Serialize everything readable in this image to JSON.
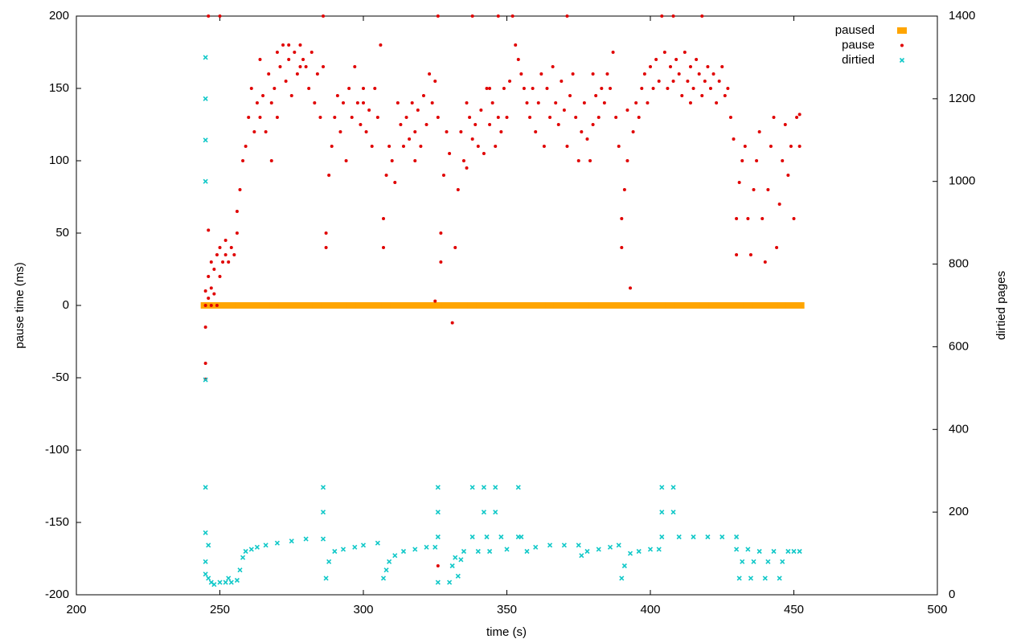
{
  "chart_data": {
    "type": "scatter",
    "xlabel": "time (s)",
    "ylabel": "pause time (ms)",
    "y2label": "dirtied pages",
    "xlim": [
      200,
      500
    ],
    "xticks": [
      200,
      250,
      300,
      350,
      400,
      450,
      500
    ],
    "ylim": [
      -200,
      200
    ],
    "yticks": [
      -200,
      -150,
      -100,
      -50,
      0,
      50,
      100,
      150,
      200
    ],
    "y2lim": [
      0,
      1400
    ],
    "y2ticks": [
      0,
      200,
      400,
      600,
      800,
      1000,
      1200,
      1400
    ],
    "grid": false,
    "legend": "top-right",
    "series": [
      {
        "name": "paused",
        "color": "#ffa500",
        "marker": "square",
        "x": [
          245,
          248,
          251,
          254,
          257,
          260,
          263,
          266,
          269,
          272,
          275,
          278,
          281,
          284,
          287,
          290,
          293,
          296,
          299,
          302,
          305,
          308,
          311,
          314,
          317,
          320,
          323,
          326,
          329,
          332,
          335,
          338,
          341,
          344,
          347,
          350,
          353,
          356,
          359,
          362,
          365,
          368,
          371,
          374,
          377,
          380,
          383,
          386,
          389,
          392,
          395,
          398,
          401,
          404,
          407,
          410,
          413,
          416,
          419,
          422,
          425,
          428,
          431,
          434,
          437,
          440,
          443,
          446,
          449,
          452
        ],
        "values": [
          0,
          0,
          0,
          0,
          0,
          0,
          0,
          0,
          0,
          0,
          0,
          0,
          0,
          0,
          0,
          0,
          0,
          0,
          0,
          0,
          0,
          0,
          0,
          0,
          0,
          0,
          0,
          0,
          0,
          0,
          0,
          0,
          0,
          0,
          0,
          0,
          0,
          0,
          0,
          0,
          0,
          0,
          0,
          0,
          0,
          0,
          0,
          0,
          0,
          0,
          0,
          0,
          0,
          0,
          0,
          0,
          0,
          0,
          0,
          0,
          0,
          0,
          0,
          0,
          0,
          0,
          0,
          0,
          0,
          0
        ]
      },
      {
        "name": "pause",
        "color": "#e00000",
        "marker": "dot",
        "x": [
          245,
          245,
          245,
          245,
          245,
          246,
          246,
          246,
          247,
          247,
          247,
          248,
          248,
          249,
          249,
          250,
          250,
          251,
          252,
          252,
          253,
          254,
          255,
          256,
          256,
          257,
          258,
          259,
          260,
          261,
          262,
          263,
          264,
          265,
          266,
          267,
          268,
          269,
          270,
          271,
          272,
          273,
          274,
          275,
          276,
          277,
          278,
          279,
          280,
          281,
          282,
          283,
          284,
          285,
          286,
          287,
          287,
          288,
          289,
          290,
          291,
          292,
          293,
          294,
          295,
          296,
          297,
          298,
          299,
          300,
          301,
          302,
          303,
          304,
          305,
          306,
          307,
          307,
          308,
          309,
          310,
          311,
          312,
          313,
          314,
          315,
          316,
          317,
          318,
          319,
          320,
          321,
          322,
          323,
          324,
          325,
          326,
          327,
          327,
          328,
          329,
          330,
          331,
          332,
          333,
          334,
          335,
          336,
          337,
          338,
          339,
          340,
          341,
          342,
          343,
          344,
          345,
          346,
          347,
          348,
          349,
          350,
          351,
          352,
          353,
          354,
          355,
          356,
          357,
          358,
          359,
          360,
          361,
          362,
          363,
          364,
          365,
          366,
          367,
          368,
          369,
          370,
          371,
          372,
          373,
          374,
          375,
          376,
          377,
          378,
          379,
          380,
          381,
          382,
          383,
          384,
          385,
          386,
          387,
          388,
          389,
          390,
          390,
          391,
          392,
          393,
          394,
          395,
          396,
          397,
          398,
          399,
          400,
          401,
          402,
          403,
          404,
          405,
          406,
          407,
          408,
          409,
          410,
          411,
          412,
          413,
          414,
          415,
          416,
          417,
          418,
          419,
          420,
          421,
          422,
          423,
          424,
          425,
          426,
          427,
          428,
          429,
          430,
          430,
          431,
          432,
          433,
          434,
          435,
          436,
          437,
          438,
          439,
          440,
          441,
          442,
          443,
          444,
          445,
          446,
          447,
          448,
          449,
          450,
          451,
          452,
          452,
          246,
          250,
          286,
          326,
          338,
          347,
          371,
          408,
          418,
          325,
          326,
          264,
          268,
          270,
          274,
          278,
          300,
          318,
          336,
          344,
          380,
          392,
          414
        ],
        "values": [
          -51,
          -40,
          -15,
          0,
          10,
          5,
          20,
          52,
          0,
          12,
          30,
          25,
          8,
          35,
          0,
          20,
          40,
          30,
          35,
          45,
          30,
          40,
          35,
          50,
          65,
          80,
          100,
          110,
          130,
          150,
          120,
          140,
          130,
          145,
          120,
          160,
          140,
          150,
          130,
          165,
          180,
          155,
          170,
          145,
          175,
          160,
          180,
          170,
          165,
          150,
          175,
          140,
          160,
          130,
          165,
          40,
          50,
          90,
          110,
          130,
          145,
          120,
          140,
          100,
          150,
          130,
          165,
          140,
          125,
          150,
          120,
          135,
          110,
          150,
          130,
          180,
          40,
          60,
          90,
          110,
          100,
          85,
          140,
          125,
          110,
          130,
          115,
          140,
          120,
          135,
          110,
          145,
          125,
          160,
          140,
          155,
          130,
          30,
          50,
          90,
          120,
          105,
          -12,
          40,
          80,
          120,
          100,
          140,
          130,
          115,
          125,
          110,
          135,
          105,
          150,
          125,
          140,
          110,
          130,
          120,
          150,
          130,
          155,
          200,
          180,
          170,
          160,
          150,
          140,
          130,
          150,
          120,
          140,
          160,
          110,
          150,
          130,
          165,
          140,
          125,
          155,
          135,
          110,
          145,
          160,
          130,
          100,
          120,
          140,
          115,
          100,
          125,
          145,
          130,
          150,
          140,
          160,
          150,
          175,
          130,
          110,
          40,
          60,
          80,
          100,
          12,
          120,
          140,
          130,
          150,
          160,
          140,
          165,
          150,
          170,
          155,
          200,
          175,
          150,
          165,
          155,
          170,
          160,
          145,
          175,
          155,
          165,
          150,
          170,
          160,
          145,
          155,
          165,
          150,
          160,
          140,
          155,
          165,
          145,
          150,
          130,
          115,
          35,
          60,
          85,
          100,
          110,
          60,
          35,
          80,
          100,
          120,
          60,
          30,
          80,
          110,
          130,
          40,
          70,
          100,
          125,
          90,
          110,
          60,
          130,
          110,
          132,
          200,
          200,
          200,
          200,
          200,
          200,
          200,
          200,
          200,
          3,
          -180,
          170,
          100,
          175,
          180,
          165,
          140,
          100,
          95,
          150,
          160,
          135,
          140
        ]
      },
      {
        "name": "dirtied",
        "color": "#10c8c8",
        "marker": "cross",
        "axis": "y2",
        "x": [
          245,
          245,
          245,
          245,
          245,
          245,
          245,
          245,
          245,
          246,
          246,
          247,
          248,
          250,
          252,
          254,
          256,
          257,
          258,
          259,
          261,
          263,
          266,
          270,
          275,
          280,
          286,
          286,
          286,
          287,
          288,
          290,
          293,
          297,
          300,
          305,
          307,
          308,
          309,
          311,
          314,
          318,
          322,
          325,
          326,
          326,
          326,
          326,
          330,
          331,
          332,
          333,
          334,
          335,
          338,
          338,
          340,
          342,
          342,
          343,
          344,
          346,
          346,
          348,
          350,
          354,
          354,
          355,
          357,
          360,
          365,
          370,
          375,
          376,
          378,
          382,
          386,
          389,
          390,
          391,
          393,
          396,
          400,
          403,
          404,
          404,
          404,
          408,
          408,
          410,
          415,
          420,
          425,
          430,
          430,
          431,
          432,
          434,
          435,
          436,
          438,
          440,
          441,
          443,
          445,
          446,
          448,
          450,
          452,
          253
        ],
        "values": [
          1300,
          1200,
          1100,
          1000,
          520,
          260,
          150,
          80,
          50,
          120,
          40,
          30,
          25,
          30,
          30,
          30,
          35,
          60,
          90,
          105,
          110,
          115,
          120,
          125,
          130,
          135,
          135,
          200,
          260,
          40,
          80,
          105,
          110,
          115,
          120,
          125,
          40,
          60,
          80,
          95,
          105,
          110,
          115,
          115,
          260,
          200,
          140,
          30,
          30,
          70,
          90,
          45,
          85,
          105,
          260,
          140,
          105,
          260,
          200,
          140,
          105,
          260,
          200,
          140,
          110,
          260,
          140,
          140,
          105,
          115,
          120,
          120,
          120,
          95,
          105,
          110,
          115,
          120,
          40,
          70,
          100,
          105,
          110,
          110,
          260,
          200,
          140,
          260,
          200,
          140,
          140,
          140,
          140,
          140,
          110,
          40,
          80,
          110,
          40,
          80,
          105,
          40,
          80,
          105,
          40,
          80,
          105,
          105,
          105,
          40
        ]
      }
    ]
  }
}
